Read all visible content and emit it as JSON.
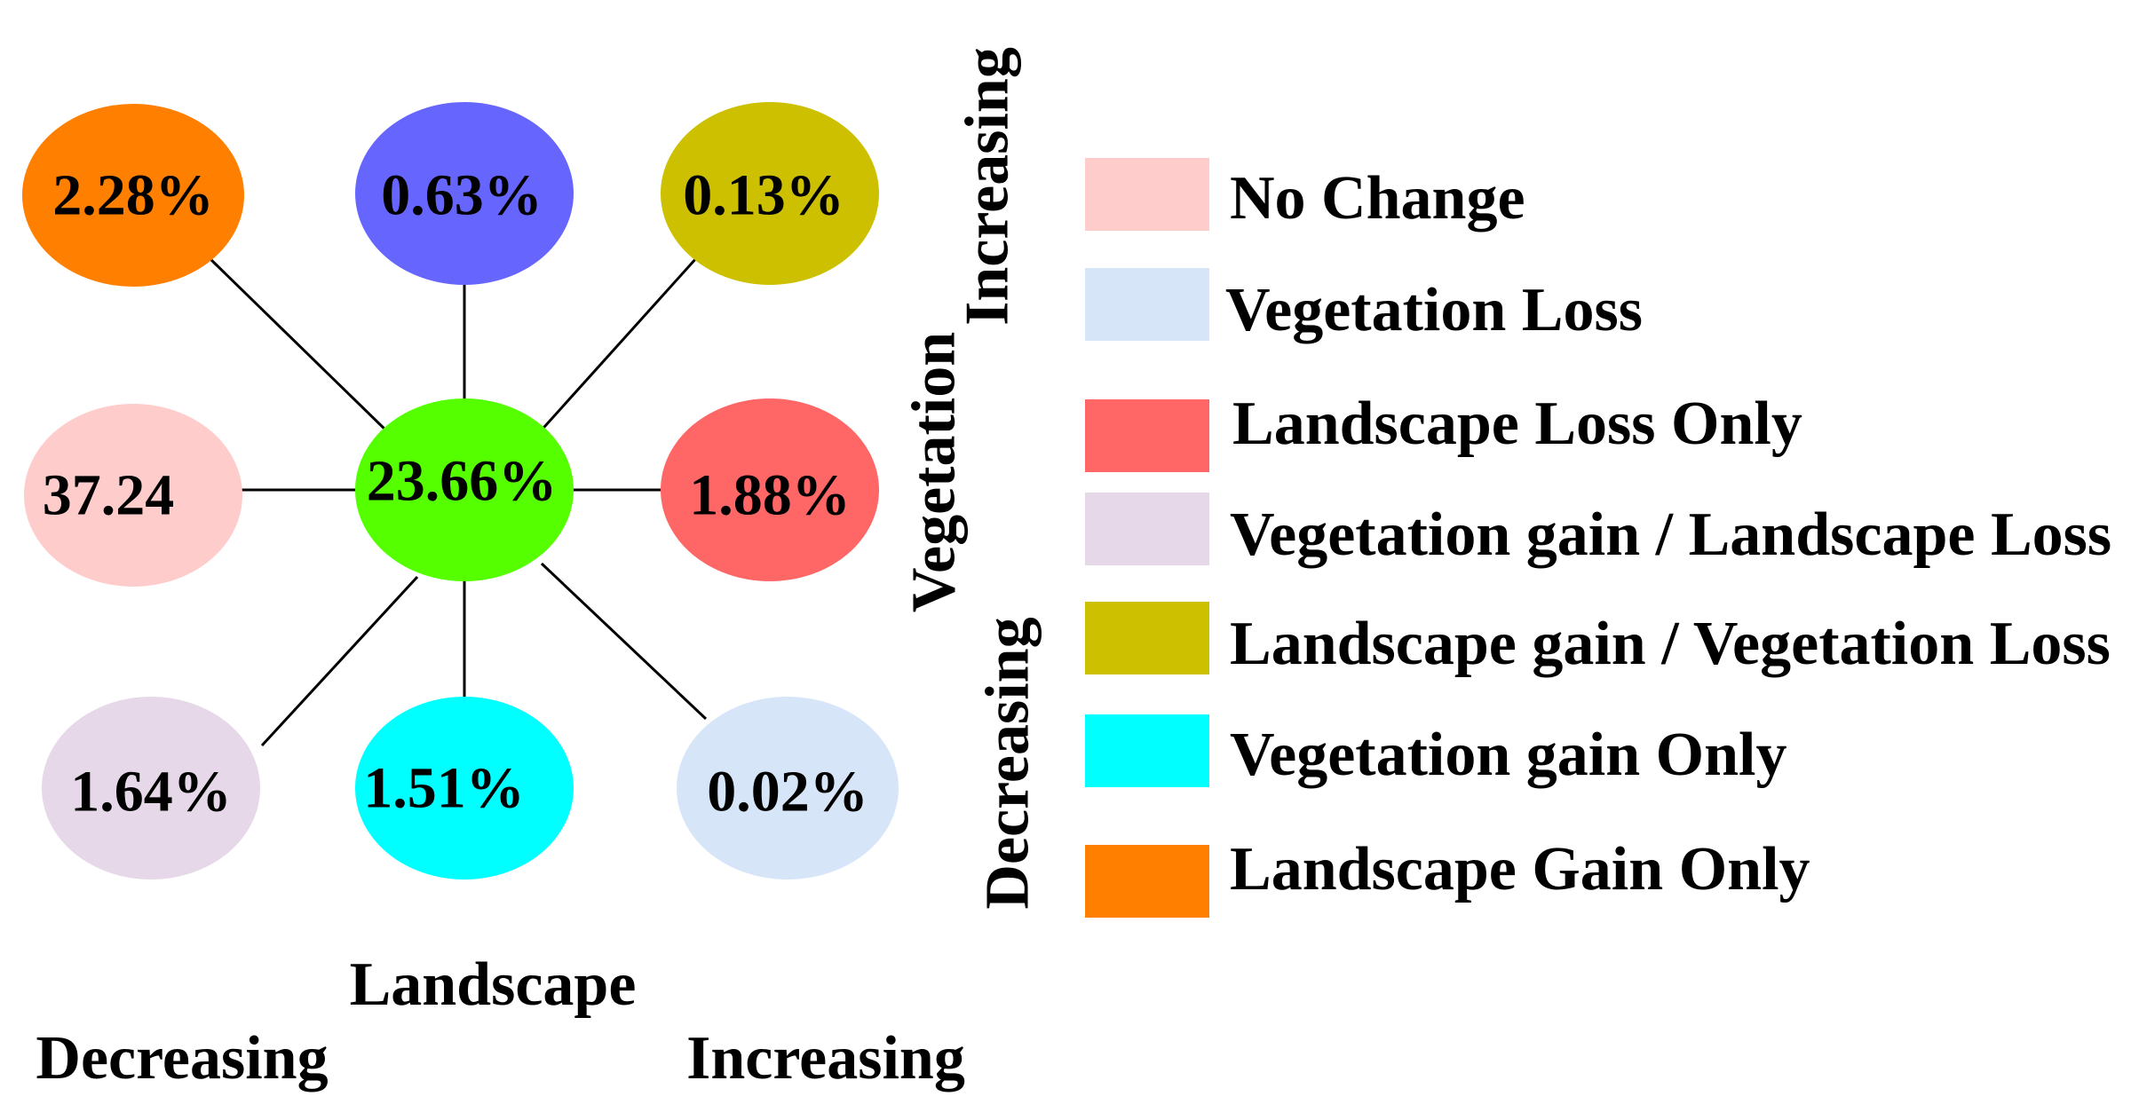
{
  "diagram": {
    "nodes": [
      {
        "id": "top-left",
        "label": "2.28%",
        "color": "#FF8000"
      },
      {
        "id": "top-center",
        "label": "0.63%",
        "color": "#6666FF"
      },
      {
        "id": "top-right",
        "label": "0.13%",
        "color": "#CCC000"
      },
      {
        "id": "middle-left",
        "label": "37.24",
        "color": "#FFCCCC"
      },
      {
        "id": "center",
        "label": "23.66%",
        "color": "#55FF00"
      },
      {
        "id": "middle-right",
        "label": "1.88%",
        "color": "#FF6666"
      },
      {
        "id": "bottom-left",
        "label": "1.64%",
        "color": "#E6D8E8"
      },
      {
        "id": "bottom-center",
        "label": "1.51%",
        "color": "#00FFFF"
      },
      {
        "id": "bottom-right",
        "label": "0.02%",
        "color": "#D6E6F8"
      }
    ],
    "axes": {
      "landscape": "Landscape",
      "landscape_decreasing": "Decreasing",
      "landscape_increasing": "Increasing",
      "vegetation": "Vegetation",
      "vegetation_increasing": "Increasing",
      "vegetation_decreasing": "Decreasing"
    }
  },
  "legend": {
    "items": [
      {
        "label": "No Change",
        "color": "#FFCCCC"
      },
      {
        "label": "Vegetation Loss",
        "color": "#D6E6F8"
      },
      {
        "label": "Landscape Loss Only",
        "color": "#FF6666"
      },
      {
        "label": "Vegetation gain / Landscape Loss",
        "color": "#E6D8E8"
      },
      {
        "label": "Landscape gain / Vegetation Loss",
        "color": "#CCC000"
      },
      {
        "label": "Vegetation gain Only",
        "color": "#00FFFF"
      },
      {
        "label": "Landscape Gain Only",
        "color": "#FF8000"
      }
    ]
  }
}
